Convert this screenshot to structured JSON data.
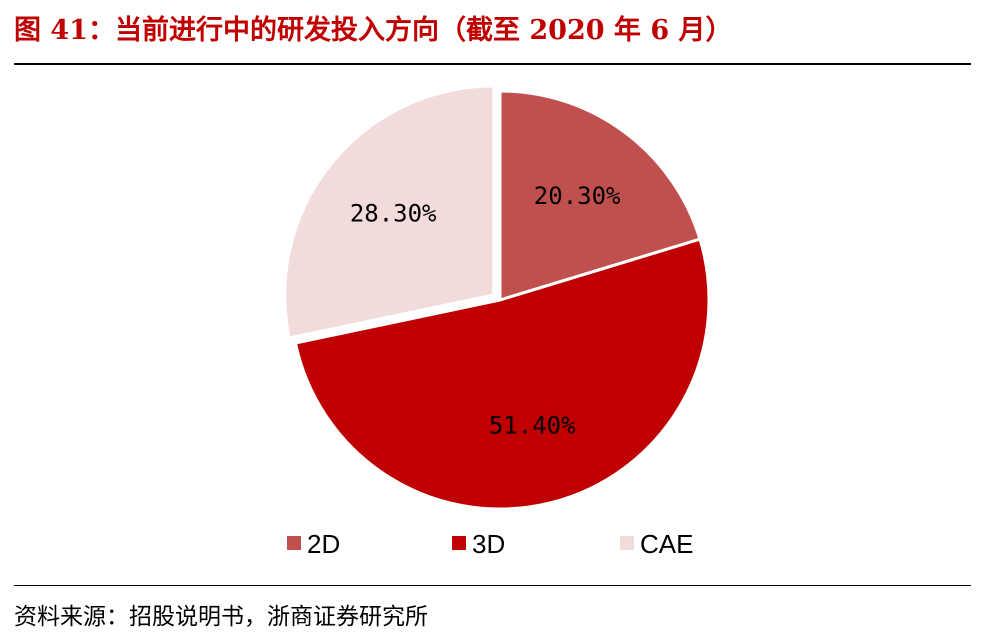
{
  "title": "图 41：当前进行中的研发投入方向（截至 2020 年 6 月）",
  "source": "资料来源：招股说明书，浙商证券研究所",
  "chart_data": {
    "type": "pie",
    "title": "",
    "categories": [
      "2D",
      "3D",
      "CAE"
    ],
    "values": [
      20.3,
      51.4,
      28.3
    ],
    "value_labels": [
      "20.30%",
      "51.40%",
      "28.30%"
    ],
    "colors": [
      "#c0504d",
      "#c00000",
      "#f2dcdb"
    ],
    "start_angle_deg": 0,
    "direction": "clockwise",
    "exploded_slice": "CAE",
    "legend_position": "bottom"
  },
  "colors": {
    "title": "#c00000",
    "text": "#000000"
  }
}
